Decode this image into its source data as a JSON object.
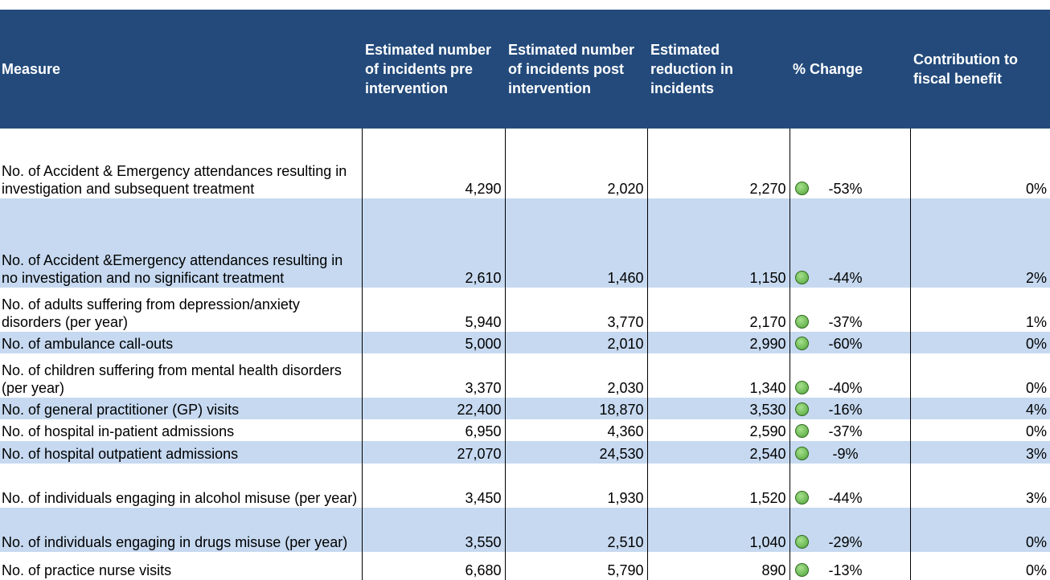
{
  "table": {
    "columns": [
      "Measure",
      "Estimated number of incidents pre intervention",
      "Estimated number of incidents post intervention",
      "Estimated reduction in incidents",
      "% Change",
      "Contribution to fiscal benefit"
    ],
    "rows": [
      [
        "No. of Accident & Emergency attendances resulting in investigation and subsequent treatment",
        "4,290",
        "2,020",
        "2,270",
        "-53%",
        "0%"
      ],
      [
        "No. of Accident &Emergency attendances resulting in no investigation and no significant treatment",
        "2,610",
        "1,460",
        "1,150",
        "-44%",
        "2%"
      ],
      [
        "No. of adults suffering from depression/anxiety disorders (per year)",
        "5,940",
        "3,770",
        "2,170",
        "-37%",
        "1%"
      ],
      [
        "No. of ambulance call-outs",
        "5,000",
        "2,010",
        "2,990",
        "-60%",
        "0%"
      ],
      [
        "No. of children suffering from mental health disorders (per year)",
        "3,370",
        "2,030",
        "1,340",
        "-40%",
        "0%"
      ],
      [
        "No. of general practitioner (GP) visits",
        "22,400",
        "18,870",
        "3,530",
        "-16%",
        "4%"
      ],
      [
        "No. of hospital in-patient admissions",
        "6,950",
        "4,360",
        "2,590",
        "-37%",
        "0%"
      ],
      [
        "No. of hospital outpatient admissions",
        "27,070",
        "24,530",
        "2,540",
        "-9%",
        "3%"
      ],
      [
        "No. of individuals engaging in alcohol misuse (per year)",
        "3,450",
        "1,930",
        "1,520",
        "-44%",
        "3%"
      ],
      [
        "No. of individuals engaging in drugs misuse (per year)",
        "3,550",
        "2,510",
        "1,040",
        "-29%",
        "0%"
      ],
      [
        "No. of practice nurse visits",
        "6,680",
        "5,790",
        "890",
        "-13%",
        "0%"
      ]
    ]
  }
}
